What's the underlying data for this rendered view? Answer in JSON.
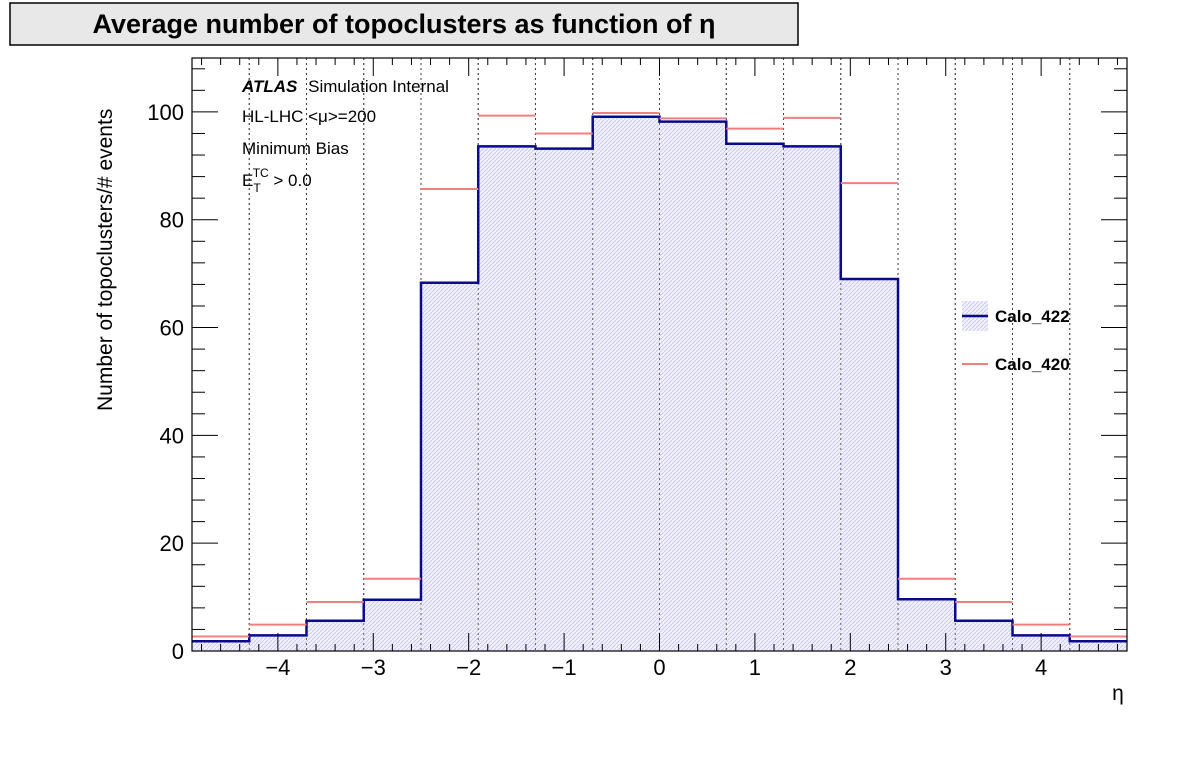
{
  "title": "Average number of topoclusters as function of η",
  "chart_data": {
    "type": "histogram",
    "title": "Average number of topoclusters as function of η",
    "xlabel": "η",
    "ylabel": "Number of topoclusters/# events",
    "xlim": [
      -4.9,
      4.9
    ],
    "ylim": [
      0,
      110
    ],
    "x_ticks": [
      -4,
      -3,
      -2,
      -1,
      0,
      1,
      2,
      3,
      4
    ],
    "x_tick_labels": [
      "−4",
      "−3",
      "−2",
      "−1",
      "0",
      "1",
      "2",
      "3",
      "4"
    ],
    "y_ticks": [
      0,
      20,
      40,
      60,
      80,
      100
    ],
    "y_tick_labels": [
      "0",
      "20",
      "40",
      "60",
      "80",
      "100"
    ],
    "bin_edges": [
      -4.9,
      -4.3,
      -3.7,
      -3.1,
      -2.5,
      -1.9,
      -1.3,
      -0.7,
      0.0,
      0.7,
      1.3,
      1.9,
      2.5,
      3.1,
      3.7,
      4.3,
      4.9
    ],
    "grid": "vertical dotted lines at bin edges",
    "legend_position": "right",
    "series": [
      {
        "name": "Calo_422",
        "color": "#0a0a8c",
        "fill": "#e3e3fb",
        "style": "filled step",
        "values": [
          1.8,
          2.9,
          5.6,
          9.5,
          68.3,
          93.6,
          93.2,
          99.1,
          98.2,
          94.1,
          93.6,
          69.0,
          9.6,
          5.6,
          2.9,
          1.8
        ]
      },
      {
        "name": "Calo_420",
        "color": "#f08080",
        "style": "horizontal markers",
        "values": [
          2.7,
          4.9,
          9.1,
          13.4,
          85.7,
          99.3,
          96.0,
          99.8,
          98.8,
          96.9,
          98.9,
          86.8,
          13.4,
          9.1,
          4.9,
          2.7
        ]
      }
    ],
    "annotations": {
      "atlas": "ATLAS",
      "label": "Simulation Internal",
      "line2": "HL-LHC <μ>=200",
      "line3": "Minimum Bias",
      "line4_main": "E",
      "line4_sub": "T",
      "line4_sup": "TC",
      "line4_rest": " > 0.0"
    }
  }
}
